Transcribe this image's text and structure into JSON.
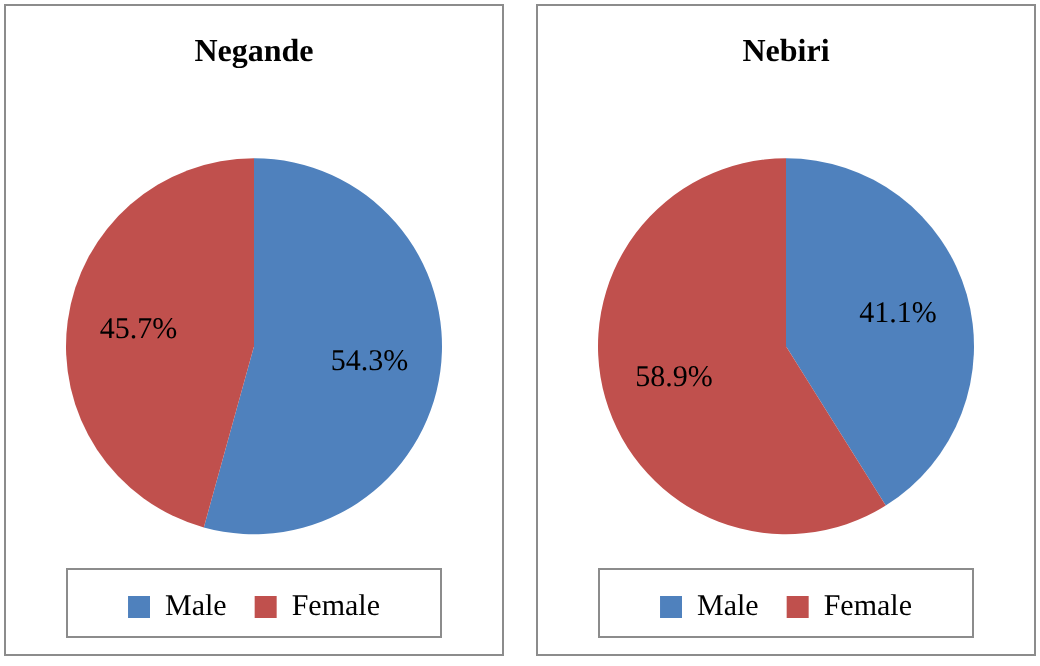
{
  "chart_data": [
    {
      "type": "pie",
      "title": "Negande",
      "categories": [
        "Male",
        "Female"
      ],
      "values": [
        54.3,
        45.7
      ],
      "colors": [
        "#4f81bd",
        "#c0504d"
      ],
      "value_labels": [
        "54.3%",
        "45.7%"
      ],
      "legend": "bottom"
    },
    {
      "type": "pie",
      "title": "Nebiri",
      "categories": [
        "Male",
        "Female"
      ],
      "values": [
        41.1,
        58.9
      ],
      "colors": [
        "#4f81bd",
        "#c0504d"
      ],
      "value_labels": [
        "41.1%",
        "58.9%"
      ],
      "legend": "bottom"
    }
  ]
}
